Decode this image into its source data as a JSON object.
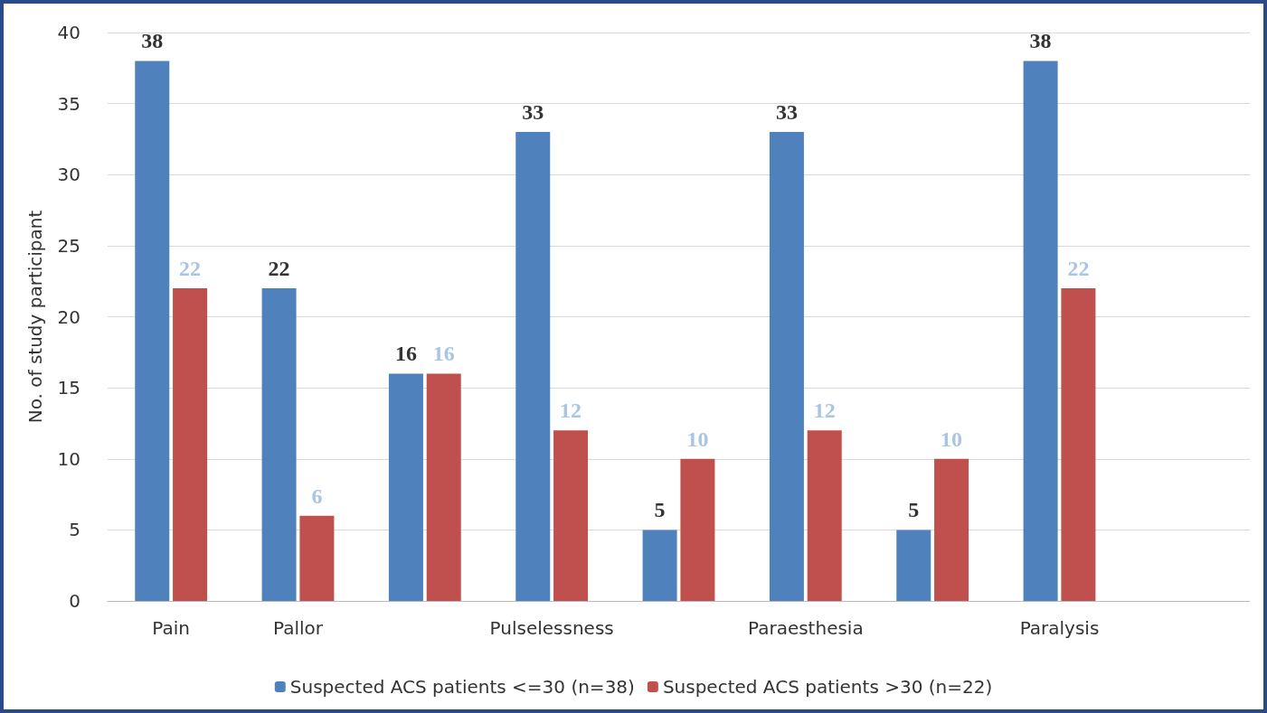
{
  "chart_data": {
    "type": "bar",
    "ylabel": "No. of study participant",
    "categories": [
      "Pain",
      "Pallor",
      null,
      "Pulselessness",
      null,
      "Paraesthesia",
      null,
      "Paralysis",
      null
    ],
    "series": [
      {
        "name": "Suspected ACS patients <=30 (n=38)",
        "color": "#4f81bd",
        "values": [
          38,
          22,
          16,
          33,
          5,
          33,
          5,
          38,
          null
        ]
      },
      {
        "name": "Suspected ACS patients >30 (n=22)",
        "color": "#c0504d",
        "values": [
          22,
          6,
          16,
          12,
          10,
          12,
          10,
          22,
          null
        ]
      }
    ],
    "ylim": [
      0,
      40
    ],
    "yticks": [
      0,
      5,
      10,
      15,
      20,
      25,
      30,
      35,
      40
    ],
    "grid": "y",
    "legend": "bottom",
    "data_labels": true
  }
}
